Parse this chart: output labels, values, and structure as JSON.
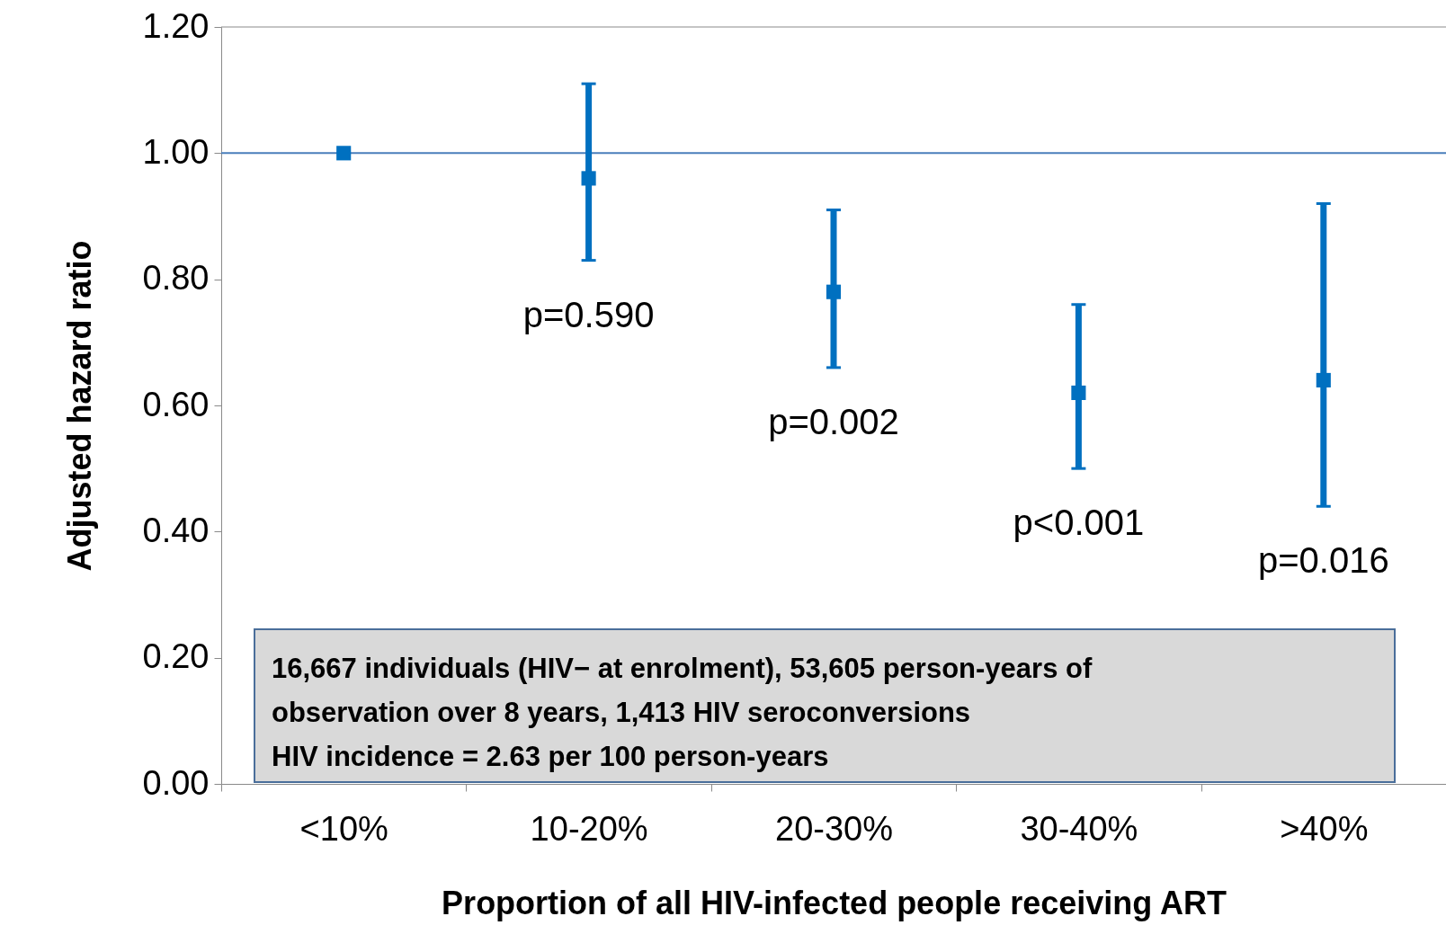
{
  "chart_data": {
    "type": "scatter",
    "xlabel": "Proportion of all HIV-infected people receiving ART",
    "ylabel": "Adjusted hazard ratio",
    "categories": [
      "<10%",
      "10-20%",
      "20-30%",
      "30-40%",
      ">40%"
    ],
    "series": [
      {
        "color": "#0070c0",
        "values": [
          1.0,
          0.96,
          0.78,
          0.62,
          0.64
        ],
        "errors": [
          null,
          [
            0.83,
            1.11
          ],
          [
            0.66,
            0.91
          ],
          [
            0.5,
            0.76
          ],
          [
            0.44,
            0.92
          ]
        ]
      }
    ],
    "marker": "square",
    "grid": false,
    "ylim": [
      0,
      1.2
    ],
    "yticks": [
      {
        "value": 0,
        "label": "0.00"
      },
      {
        "value": 0.2,
        "label": "0.20"
      },
      {
        "value": 0.4,
        "label": "0.40"
      },
      {
        "value": 0.6,
        "label": "0.60"
      },
      {
        "value": 0.8,
        "label": "0.80"
      },
      {
        "value": 1.0,
        "label": "1.00"
      },
      {
        "value": 1.2,
        "label": "1.20"
      }
    ],
    "ref_lines": [
      {
        "axis": "y",
        "value": 1.0,
        "color": "#4a7ebb"
      }
    ],
    "annotations": [
      {
        "text": "p=0.590",
        "x": "10-20%",
        "y": 0.83
      },
      {
        "text": "p=0.002",
        "x": "20-30%",
        "y": 0.66
      },
      {
        "text": "p<0.001",
        "x": "30-40%",
        "y": 0.5
      },
      {
        "text": "p=0.016",
        "x": ">40%",
        "y": 0.44
      },
      "16,667 individuals (HIV− at enrolment), 53,605 person-years of",
      "observation over 8 years, 1,413 HIV seroconversions",
      "HIV incidence = 2.63 per 100 person-years"
    ]
  }
}
